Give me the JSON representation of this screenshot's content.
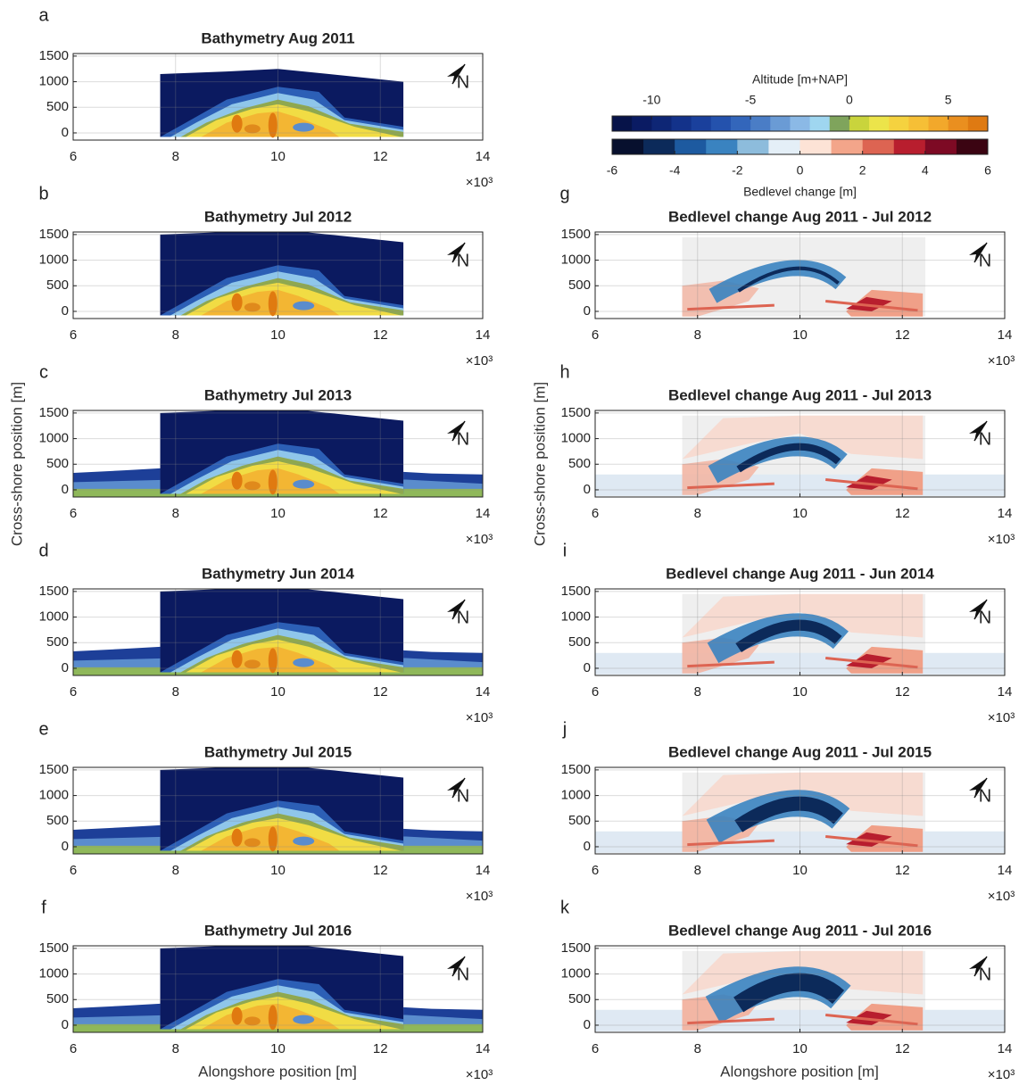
{
  "figure": {
    "ylabel": "Cross-shore position [m]",
    "xlabel": "Alongshore position [m]",
    "north_label": "N"
  },
  "colorbars": [
    {
      "label": "Altitude [m+NAP]",
      "lim": [
        -12,
        7
      ],
      "ticks": [
        -10,
        -5,
        0,
        5
      ],
      "colors": [
        "#071349",
        "#0a1b63",
        "#0e2675",
        "#13328a",
        "#1a409c",
        "#2452ad",
        "#3366bb",
        "#4a7dc6",
        "#6a9bd5",
        "#8bb9e6",
        "#9fd6f0",
        "#7fa45c",
        "#c9d43c",
        "#ece44a",
        "#f5d23f",
        "#f6bf36",
        "#f2a82b",
        "#ea8f1f",
        "#df7a12"
      ]
    },
    {
      "label": "Bedlevel change [m]",
      "lim": [
        -6,
        6
      ],
      "ticks": [
        -6,
        -4,
        -2,
        0,
        2,
        4,
        6
      ],
      "colors": [
        "#07102e",
        "#0c2a5a",
        "#1d5aa0",
        "#3a83c0",
        "#8dbcdc",
        "#e4eff7",
        "#fde3d6",
        "#f3a58a",
        "#dd6452",
        "#b81e2e",
        "#7d0a24",
        "#3b0412"
      ]
    }
  ],
  "chart_data": [
    {
      "type": "heatmap",
      "panel_label": "a",
      "title": "Bathymetry Aug 2011",
      "xlim": [
        6,
        14
      ],
      "xticks": [
        6,
        8,
        10,
        12,
        14
      ],
      "x_multiplier": "×10³",
      "ylim": [
        -140,
        1550
      ],
      "yticks": [
        0,
        500,
        1000,
        1500
      ],
      "grid": true
    },
    {
      "type": "heatmap",
      "panel_label": "b",
      "title": "Bathymetry Jul 2012",
      "xlim": [
        6,
        14
      ],
      "xticks": [
        6,
        8,
        10,
        12,
        14
      ],
      "x_multiplier": "×10³",
      "ylim": [
        -140,
        1550
      ],
      "yticks": [
        0,
        500,
        1000,
        1500
      ],
      "grid": true
    },
    {
      "type": "heatmap",
      "panel_label": "c",
      "title": "Bathymetry Jul 2013",
      "xlim": [
        6,
        14
      ],
      "xticks": [
        6,
        8,
        10,
        12,
        14
      ],
      "x_multiplier": "×10³",
      "ylim": [
        -140,
        1550
      ],
      "yticks": [
        0,
        500,
        1000,
        1500
      ],
      "grid": true
    },
    {
      "type": "heatmap",
      "panel_label": "d",
      "title": "Bathymetry Jun 2014",
      "xlim": [
        6,
        14
      ],
      "xticks": [
        6,
        8,
        10,
        12,
        14
      ],
      "x_multiplier": "×10³",
      "ylim": [
        -140,
        1550
      ],
      "yticks": [
        0,
        500,
        1000,
        1500
      ],
      "grid": true
    },
    {
      "type": "heatmap",
      "panel_label": "e",
      "title": "Bathymetry Jul 2015",
      "xlim": [
        6,
        14
      ],
      "xticks": [
        6,
        8,
        10,
        12,
        14
      ],
      "x_multiplier": "×10³",
      "ylim": [
        -140,
        1550
      ],
      "yticks": [
        0,
        500,
        1000,
        1500
      ],
      "grid": true
    },
    {
      "type": "heatmap",
      "panel_label": "f",
      "title": "Bathymetry Jul 2016",
      "xlim": [
        6,
        14
      ],
      "xticks": [
        6,
        8,
        10,
        12,
        14
      ],
      "x_multiplier": "×10³",
      "ylim": [
        -140,
        1550
      ],
      "yticks": [
        0,
        500,
        1000,
        1500
      ],
      "grid": true
    },
    {
      "type": "heatmap",
      "panel_label": "g",
      "title": "Bedlevel change Aug 2011 - Jul 2012",
      "xlim": [
        6,
        14
      ],
      "xticks": [
        6,
        8,
        10,
        12,
        14
      ],
      "x_multiplier": "×10³",
      "ylim": [
        -140,
        1550
      ],
      "yticks": [
        0,
        500,
        1000,
        1500
      ],
      "grid": true
    },
    {
      "type": "heatmap",
      "panel_label": "h",
      "title": "Bedlevel change Aug 2011 - Jul 2013",
      "xlim": [
        6,
        14
      ],
      "xticks": [
        6,
        8,
        10,
        12,
        14
      ],
      "x_multiplier": "×10³",
      "ylim": [
        -140,
        1550
      ],
      "yticks": [
        0,
        500,
        1000,
        1500
      ],
      "grid": true
    },
    {
      "type": "heatmap",
      "panel_label": "i",
      "title": "Bedlevel change Aug 2011 - Jun 2014",
      "xlim": [
        6,
        14
      ],
      "xticks": [
        6,
        8,
        10,
        12,
        14
      ],
      "x_multiplier": "×10³",
      "ylim": [
        -140,
        1550
      ],
      "yticks": [
        0,
        500,
        1000,
        1500
      ],
      "grid": true
    },
    {
      "type": "heatmap",
      "panel_label": "j",
      "title": "Bedlevel change Aug 2011 - Jul 2015",
      "xlim": [
        6,
        14
      ],
      "xticks": [
        6,
        8,
        10,
        12,
        14
      ],
      "x_multiplier": "×10³",
      "ylim": [
        -140,
        1550
      ],
      "yticks": [
        0,
        500,
        1000,
        1500
      ],
      "grid": true
    },
    {
      "type": "heatmap",
      "panel_label": "k",
      "title": "Bedlevel change Aug 2011 - Jul 2016",
      "xlim": [
        6,
        14
      ],
      "xticks": [
        6,
        8,
        10,
        12,
        14
      ],
      "x_multiplier": "×10³",
      "ylim": [
        -140,
        1550
      ],
      "yticks": [
        0,
        500,
        1000,
        1500
      ],
      "grid": true
    }
  ]
}
